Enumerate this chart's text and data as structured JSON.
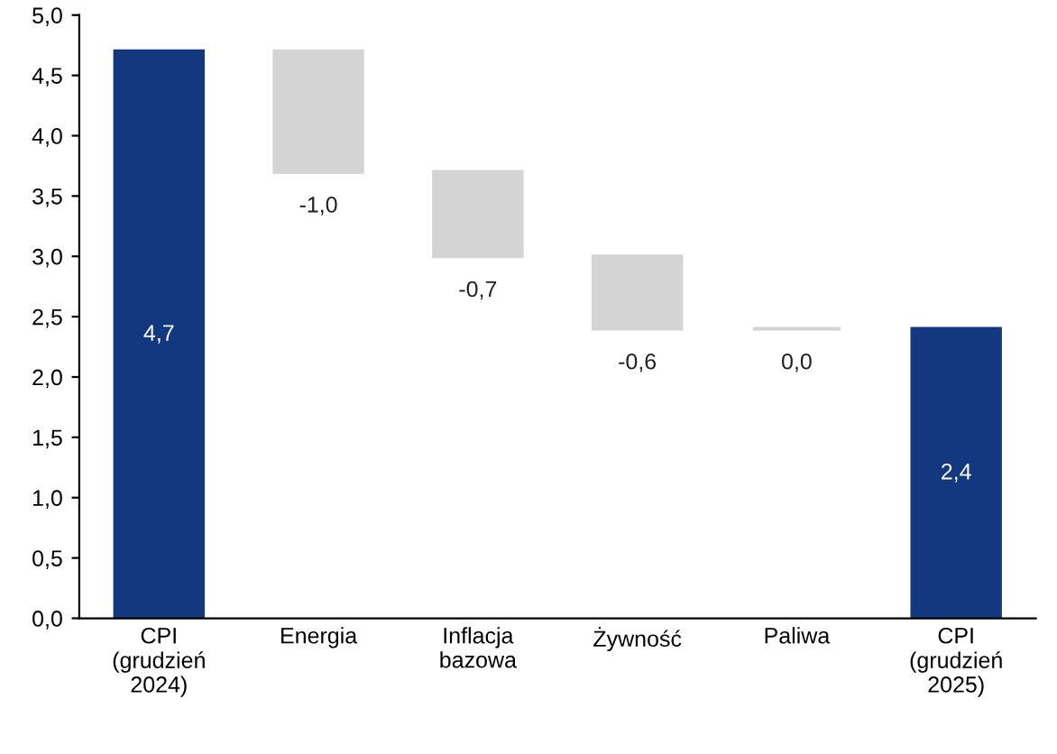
{
  "chart_data": {
    "type": "bar",
    "categories": [
      "CPI\n(grudzień\n2024)",
      "Energia",
      "Inflacja\nbazowa",
      "Żywność",
      "Paliwa",
      "CPI\n(grudzień\n2025)"
    ],
    "values": [
      4.7,
      -1.0,
      -0.7,
      -0.6,
      0.0,
      2.4
    ],
    "base": [
      0,
      4.7,
      3.7,
      3.0,
      2.4,
      0
    ],
    "colors": [
      "#14387f",
      "#d4d4d4",
      "#d4d4d4",
      "#d4d4d4",
      "#d4d4d4",
      "#14387f"
    ],
    "value_labels": [
      "4,7",
      "-1,0",
      "-0,7",
      "-0,6",
      "0,0",
      "2,4"
    ],
    "ylim": [
      0,
      5
    ],
    "yticks": [
      {
        "value": 0,
        "label": "0,0"
      },
      {
        "value": 0.5,
        "label": "0,5"
      },
      {
        "value": 1,
        "label": "1,0"
      },
      {
        "value": 1.5,
        "label": "1,5"
      },
      {
        "value": 2,
        "label": "2,0"
      },
      {
        "value": 2.5,
        "label": "2,5"
      },
      {
        "value": 3,
        "label": "3,0"
      },
      {
        "value": 3.5,
        "label": "3,5"
      },
      {
        "value": 4,
        "label": "4,0"
      },
      {
        "value": 4.5,
        "label": "4,5"
      },
      {
        "value": 5,
        "label": "5,0"
      }
    ],
    "grid": false,
    "legend": false
  }
}
